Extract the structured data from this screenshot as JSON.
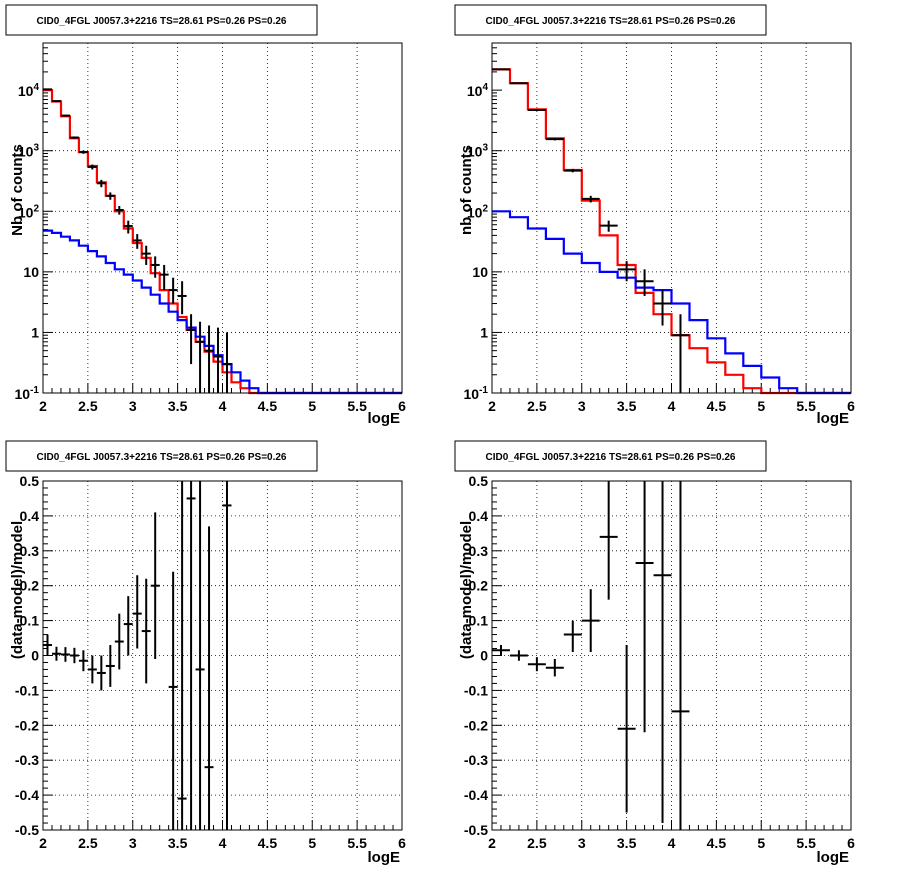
{
  "chart_data": [
    {
      "id": "tl",
      "type": "line",
      "title": "CID0_4FGL J0057.3+2216 TS=28.61 PS=0.26 PS=0.26",
      "xlabel": "logE",
      "ylabel": "Nb of counts",
      "xlim": [
        2,
        6
      ],
      "ylim": [
        0.1,
        60000
      ],
      "ylog": true,
      "grid": true,
      "xticks": [
        2,
        2.5,
        3,
        3.5,
        4,
        4.5,
        5,
        5.5,
        6
      ],
      "xtick_labels": [
        "2",
        "2.5",
        "3",
        "3.5",
        "4",
        "4.5",
        "5",
        "5.5",
        "6"
      ],
      "yticks": [
        0.1,
        1,
        10,
        100,
        1000,
        10000
      ],
      "ytick_labels": [
        "10^-1",
        "1",
        "10",
        "10^2",
        "10^3",
        "10^4"
      ],
      "series": [
        {
          "kind": "step",
          "color": "#ff0000",
          "edges": [
            2.0,
            2.1,
            2.2,
            2.3,
            2.4,
            2.5,
            2.6,
            2.7,
            2.8,
            2.9,
            3.0,
            3.1,
            3.2,
            3.3,
            3.4,
            3.5,
            3.6,
            3.7,
            3.8,
            3.9,
            4.0,
            4.1,
            4.2,
            4.3,
            4.4,
            4.5,
            4.6,
            4.7,
            4.8,
            4.9,
            5.0,
            5.1,
            5.2,
            5.3,
            5.4,
            5.5,
            5.6,
            5.7,
            5.8,
            5.9,
            6.0
          ],
          "values": [
            10000,
            6500,
            3700,
            1600,
            950,
            560,
            300,
            180,
            100,
            52,
            30,
            17,
            9.5,
            5.0,
            3.0,
            1.8,
            1.1,
            0.7,
            0.48,
            0.33,
            0.22,
            0.15,
            0.12,
            0.1,
            0.1,
            0.1,
            0.1,
            0.1,
            0.1,
            0.1,
            0.1,
            0.1,
            0.1,
            0.1,
            0.1,
            0.1,
            0.1,
            0.1,
            0.1,
            0.1
          ]
        },
        {
          "kind": "step",
          "color": "#0000ff",
          "edges": [
            2.0,
            2.1,
            2.2,
            2.3,
            2.4,
            2.5,
            2.6,
            2.7,
            2.8,
            2.9,
            3.0,
            3.1,
            3.2,
            3.3,
            3.4,
            3.5,
            3.6,
            3.7,
            3.8,
            3.9,
            4.0,
            4.1,
            4.2,
            4.3,
            4.4,
            4.5,
            4.6,
            4.7,
            4.8,
            4.9,
            5.0,
            5.1,
            5.2,
            5.3,
            5.4,
            5.5,
            5.6,
            5.7,
            5.8,
            5.9,
            6.0
          ],
          "values": [
            48,
            44,
            38,
            33,
            27,
            22,
            18,
            14,
            11,
            9,
            7.2,
            5.5,
            4.2,
            3.0,
            2.2,
            1.6,
            1.2,
            0.85,
            0.6,
            0.42,
            0.3,
            0.22,
            0.16,
            0.12,
            0.1,
            0.1,
            0.1,
            0.1,
            0.1,
            0.1,
            0.1,
            0.1,
            0.1,
            0.1,
            0.1,
            0.1,
            0.1,
            0.1,
            0.1,
            0.1
          ]
        },
        {
          "kind": "points",
          "color": "#000000",
          "x": [
            2.05,
            2.15,
            2.25,
            2.35,
            2.45,
            2.55,
            2.65,
            2.75,
            2.85,
            2.95,
            3.05,
            3.15,
            3.25,
            3.35,
            3.45,
            3.55,
            3.65,
            3.75,
            3.85,
            3.95,
            4.05
          ],
          "xerr": 0.05,
          "y": [
            10300,
            6600,
            3800,
            1650,
            950,
            540,
            290,
            180,
            105,
            57,
            33,
            20,
            13,
            9,
            5,
            4,
            1.1,
            0.7,
            0.5,
            0.4,
            0.3
          ],
          "ylo": [
            10100,
            6450,
            3680,
            1580,
            890,
            490,
            250,
            155,
            88,
            43,
            24,
            13,
            8,
            5,
            3,
            2,
            0.3,
            0.1,
            0.1,
            0.1,
            0.1
          ],
          "yhi": [
            10500,
            6750,
            3920,
            1720,
            1010,
            590,
            330,
            205,
            122,
            70,
            42,
            27,
            18,
            13,
            8,
            7,
            2,
            1.5,
            1.3,
            1.2,
            1.0
          ]
        }
      ]
    },
    {
      "id": "tr",
      "type": "line",
      "title": "CID0_4FGL J0057.3+2216 TS=28.61 PS=0.26 PS=0.26",
      "xlabel": "logE",
      "ylabel": "nb of counts",
      "xlim": [
        2,
        6
      ],
      "ylim": [
        0.1,
        60000
      ],
      "ylog": true,
      "grid": true,
      "xticks": [
        2,
        2.5,
        3,
        3.5,
        4,
        4.5,
        5,
        5.5,
        6
      ],
      "xtick_labels": [
        "2",
        "2.5",
        "3",
        "3.5",
        "4",
        "4.5",
        "5",
        "5.5",
        "6"
      ],
      "yticks": [
        0.1,
        1,
        10,
        100,
        1000,
        10000
      ],
      "ytick_labels": [
        "10^-1",
        "1",
        "10",
        "10^2",
        "10^3",
        "10^4"
      ],
      "series": [
        {
          "kind": "step",
          "color": "#ff0000",
          "edges": [
            2.0,
            2.2,
            2.4,
            2.6,
            2.8,
            3.0,
            3.2,
            3.4,
            3.6,
            3.8,
            4.0,
            4.2,
            4.4,
            4.6,
            4.8,
            5.0,
            5.2,
            5.4,
            5.6,
            5.8,
            6.0
          ],
          "values": [
            22000,
            13000,
            4800,
            1600,
            480,
            150,
            40,
            13,
            4.5,
            2.0,
            0.9,
            0.55,
            0.32,
            0.2,
            0.12,
            0.1,
            0.1,
            0.1,
            0.1,
            0.1
          ]
        },
        {
          "kind": "step",
          "color": "#0000ff",
          "edges": [
            2.0,
            2.2,
            2.4,
            2.6,
            2.8,
            3.0,
            3.2,
            3.4,
            3.6,
            3.8,
            4.0,
            4.2,
            4.4,
            4.6,
            4.8,
            5.0,
            5.2,
            5.4,
            5.6,
            5.8,
            6.0
          ],
          "values": [
            100,
            80,
            52,
            35,
            20,
            14,
            10,
            8,
            5.5,
            5.0,
            3.0,
            1.6,
            0.8,
            0.45,
            0.28,
            0.18,
            0.12,
            0.1,
            0.1,
            0.1
          ]
        },
        {
          "kind": "points",
          "color": "#000000",
          "x": [
            2.1,
            2.3,
            2.5,
            2.7,
            2.9,
            3.1,
            3.3,
            3.5,
            3.7,
            3.9,
            4.1
          ],
          "xerr": 0.1,
          "y": [
            22000,
            13000,
            4700,
            1550,
            470,
            160,
            58,
            11,
            7,
            3,
            0.9
          ],
          "ylo": [
            21500,
            12700,
            4550,
            1480,
            440,
            140,
            46,
            7,
            4,
            1.3,
            0.1
          ],
          "yhi": [
            22500,
            13300,
            4850,
            1620,
            500,
            180,
            70,
            15,
            11,
            5,
            2.0
          ]
        }
      ]
    },
    {
      "id": "bl",
      "type": "scatter",
      "title": "CID0_4FGL J0057.3+2216 TS=28.61 PS=0.26 PS=0.26",
      "xlabel": "logE",
      "ylabel": "(data-model)/model",
      "xlim": [
        2,
        6
      ],
      "ylim": [
        -0.5,
        0.5
      ],
      "ylog": false,
      "grid": true,
      "xticks": [
        2,
        2.5,
        3,
        3.5,
        4,
        4.5,
        5,
        5.5,
        6
      ],
      "xtick_labels": [
        "2",
        "2.5",
        "3",
        "3.5",
        "4",
        "4.5",
        "5",
        "5.5",
        "6"
      ],
      "yticks": [
        -0.5,
        -0.4,
        -0.3,
        -0.2,
        -0.1,
        0,
        0.1,
        0.2,
        0.3,
        0.4,
        0.5
      ],
      "ytick_labels": [
        "-0.5",
        "-0.4",
        "-0.3",
        "-0.2",
        "-0.1",
        "0",
        "0.1",
        "0.2",
        "0.3",
        "0.4",
        "0.5"
      ],
      "series": [
        {
          "kind": "points",
          "color": "#000000",
          "x": [
            2.05,
            2.15,
            2.25,
            2.35,
            2.45,
            2.55,
            2.65,
            2.75,
            2.85,
            2.95,
            3.05,
            3.15,
            3.25,
            3.45,
            3.55,
            3.65,
            3.75,
            3.85,
            4.05
          ],
          "xerr": 0.05,
          "y": [
            0.03,
            0.005,
            0.003,
            0.0,
            -0.015,
            -0.04,
            -0.05,
            -0.03,
            0.04,
            0.09,
            0.12,
            0.07,
            0.2,
            -0.09,
            -0.41,
            0.45,
            -0.04,
            -0.32,
            0.43
          ],
          "ylo": [
            0.0,
            -0.015,
            -0.018,
            -0.022,
            -0.045,
            -0.08,
            -0.1,
            -0.09,
            -0.04,
            0.0,
            0.02,
            -0.08,
            -0.01,
            -0.5,
            -0.5,
            -0.5,
            -0.5,
            -0.5,
            -0.5
          ],
          "yhi": [
            0.06,
            0.025,
            0.024,
            0.022,
            0.015,
            0.0,
            0.0,
            0.03,
            0.12,
            0.17,
            0.23,
            0.22,
            0.41,
            0.24,
            0.5,
            0.5,
            0.5,
            0.37,
            0.5
          ]
        }
      ]
    },
    {
      "id": "br",
      "type": "scatter",
      "title": "CID0_4FGL J0057.3+2216 TS=28.61 PS=0.26 PS=0.26",
      "xlabel": "logE",
      "ylabel": "(data-model)/model",
      "xlim": [
        2,
        6
      ],
      "ylim": [
        -0.5,
        0.5
      ],
      "ylog": false,
      "grid": true,
      "xticks": [
        2,
        2.5,
        3,
        3.5,
        4,
        4.5,
        5,
        5.5,
        6
      ],
      "xtick_labels": [
        "2",
        "2.5",
        "3",
        "3.5",
        "4",
        "4.5",
        "5",
        "5.5",
        "6"
      ],
      "yticks": [
        -0.5,
        -0.4,
        -0.3,
        -0.2,
        -0.1,
        0,
        0.1,
        0.2,
        0.3,
        0.4,
        0.5
      ],
      "ytick_labels": [
        "-0.5",
        "-0.4",
        "-0.3",
        "-0.2",
        "-0.1",
        "0",
        "0.1",
        "0.2",
        "0.3",
        "0.4",
        "0.5"
      ],
      "series": [
        {
          "kind": "points",
          "color": "#000000",
          "x": [
            2.1,
            2.3,
            2.5,
            2.7,
            2.9,
            3.1,
            3.3,
            3.5,
            3.7,
            3.9,
            4.1
          ],
          "xerr": 0.1,
          "y": [
            0.015,
            0.0,
            -0.025,
            -0.035,
            0.06,
            0.1,
            0.34,
            -0.21,
            0.265,
            0.23,
            -0.16
          ],
          "ylo": [
            0.0,
            -0.015,
            -0.045,
            -0.06,
            0.01,
            0.01,
            0.16,
            -0.45,
            -0.22,
            -0.48,
            -0.5
          ],
          "yhi": [
            0.03,
            0.015,
            -0.005,
            -0.01,
            0.1,
            0.19,
            0.5,
            0.03,
            0.5,
            0.5,
            0.5
          ]
        }
      ]
    }
  ]
}
